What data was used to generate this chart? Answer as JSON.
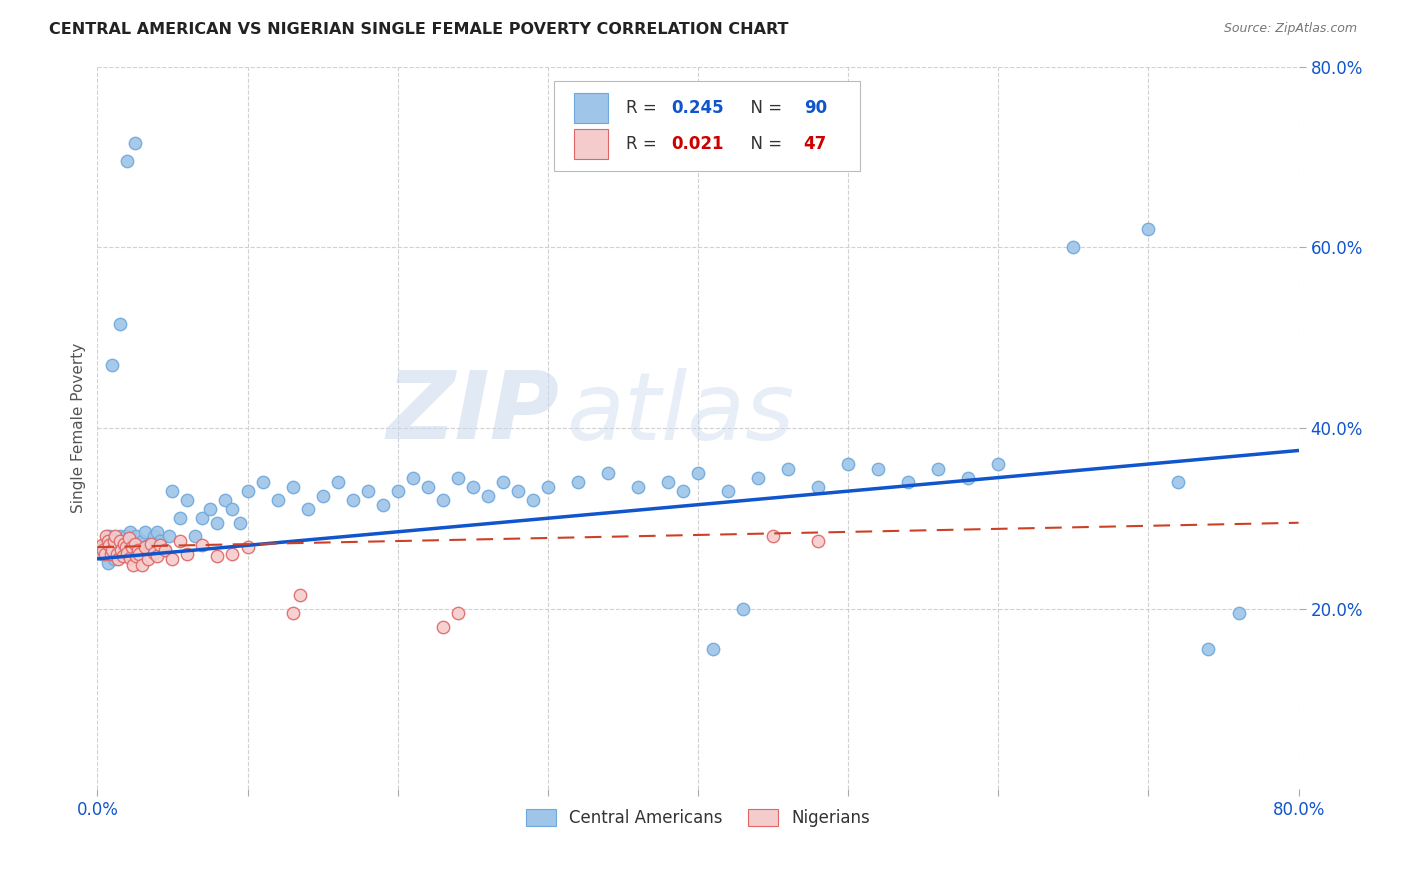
{
  "title": "CENTRAL AMERICAN VS NIGERIAN SINGLE FEMALE POVERTY CORRELATION CHART",
  "source": "Source: ZipAtlas.com",
  "ylabel": "Single Female Poverty",
  "xlim": [
    0,
    0.8
  ],
  "ylim": [
    0,
    0.8
  ],
  "blue_color": "#9fc5e8",
  "blue_edge_color": "#6fa8dc",
  "pink_color": "#f4cccc",
  "pink_edge_color": "#e06666",
  "blue_line_color": "#1155cc",
  "pink_line_color": "#cc4125",
  "watermark_zip": "ZIP",
  "watermark_atlas": "atlas",
  "legend_R_blue": "R = 0.245",
  "legend_N_blue": "N = 90",
  "legend_R_pink": "R = 0.021",
  "legend_N_pink": "N = 47",
  "blue_scatter_x": [
    0.003,
    0.005,
    0.007,
    0.008,
    0.01,
    0.011,
    0.012,
    0.013,
    0.014,
    0.015,
    0.016,
    0.017,
    0.018,
    0.019,
    0.02,
    0.021,
    0.022,
    0.023,
    0.024,
    0.025,
    0.026,
    0.027,
    0.028,
    0.03,
    0.032,
    0.034,
    0.036,
    0.038,
    0.04,
    0.042,
    0.045,
    0.048,
    0.05,
    0.055,
    0.06,
    0.065,
    0.07,
    0.075,
    0.08,
    0.085,
    0.09,
    0.095,
    0.1,
    0.11,
    0.12,
    0.13,
    0.14,
    0.15,
    0.16,
    0.17,
    0.18,
    0.19,
    0.2,
    0.21,
    0.22,
    0.23,
    0.24,
    0.25,
    0.26,
    0.27,
    0.28,
    0.29,
    0.3,
    0.32,
    0.34,
    0.36,
    0.38,
    0.4,
    0.42,
    0.44,
    0.46,
    0.48,
    0.5,
    0.52,
    0.54,
    0.56,
    0.58,
    0.6,
    0.65,
    0.7,
    0.72,
    0.74,
    0.76,
    0.01,
    0.015,
    0.02,
    0.025,
    0.39,
    0.41,
    0.43
  ],
  "blue_scatter_y": [
    0.26,
    0.27,
    0.25,
    0.28,
    0.265,
    0.255,
    0.275,
    0.26,
    0.27,
    0.28,
    0.265,
    0.275,
    0.26,
    0.28,
    0.27,
    0.265,
    0.285,
    0.275,
    0.27,
    0.265,
    0.28,
    0.27,
    0.26,
    0.275,
    0.285,
    0.27,
    0.265,
    0.28,
    0.285,
    0.275,
    0.265,
    0.28,
    0.33,
    0.3,
    0.32,
    0.28,
    0.3,
    0.31,
    0.295,
    0.32,
    0.31,
    0.295,
    0.33,
    0.34,
    0.32,
    0.335,
    0.31,
    0.325,
    0.34,
    0.32,
    0.33,
    0.315,
    0.33,
    0.345,
    0.335,
    0.32,
    0.345,
    0.335,
    0.325,
    0.34,
    0.33,
    0.32,
    0.335,
    0.34,
    0.35,
    0.335,
    0.34,
    0.35,
    0.33,
    0.345,
    0.355,
    0.335,
    0.36,
    0.355,
    0.34,
    0.355,
    0.345,
    0.36,
    0.6,
    0.62,
    0.34,
    0.155,
    0.195,
    0.47,
    0.515,
    0.695,
    0.715,
    0.33,
    0.155,
    0.2
  ],
  "pink_scatter_x": [
    0.003,
    0.004,
    0.005,
    0.006,
    0.007,
    0.008,
    0.009,
    0.01,
    0.011,
    0.012,
    0.013,
    0.014,
    0.015,
    0.016,
    0.017,
    0.018,
    0.019,
    0.02,
    0.021,
    0.022,
    0.023,
    0.024,
    0.025,
    0.026,
    0.027,
    0.028,
    0.03,
    0.032,
    0.034,
    0.036,
    0.038,
    0.04,
    0.042,
    0.045,
    0.05,
    0.055,
    0.06,
    0.07,
    0.08,
    0.09,
    0.1,
    0.13,
    0.135,
    0.23,
    0.24,
    0.45,
    0.48
  ],
  "pink_scatter_y": [
    0.27,
    0.265,
    0.26,
    0.28,
    0.275,
    0.27,
    0.26,
    0.265,
    0.275,
    0.28,
    0.26,
    0.255,
    0.275,
    0.265,
    0.258,
    0.272,
    0.268,
    0.262,
    0.278,
    0.256,
    0.268,
    0.248,
    0.272,
    0.258,
    0.265,
    0.26,
    0.248,
    0.268,
    0.255,
    0.272,
    0.262,
    0.258,
    0.27,
    0.265,
    0.255,
    0.275,
    0.26,
    0.27,
    0.258,
    0.26,
    0.268,
    0.195,
    0.215,
    0.18,
    0.195,
    0.28,
    0.275
  ],
  "blue_line_x0": 0.0,
  "blue_line_x1": 0.8,
  "blue_line_y0": 0.255,
  "blue_line_y1": 0.375,
  "pink_line_x0": 0.0,
  "pink_line_x1": 0.8,
  "pink_line_y0": 0.268,
  "pink_line_y1": 0.295
}
